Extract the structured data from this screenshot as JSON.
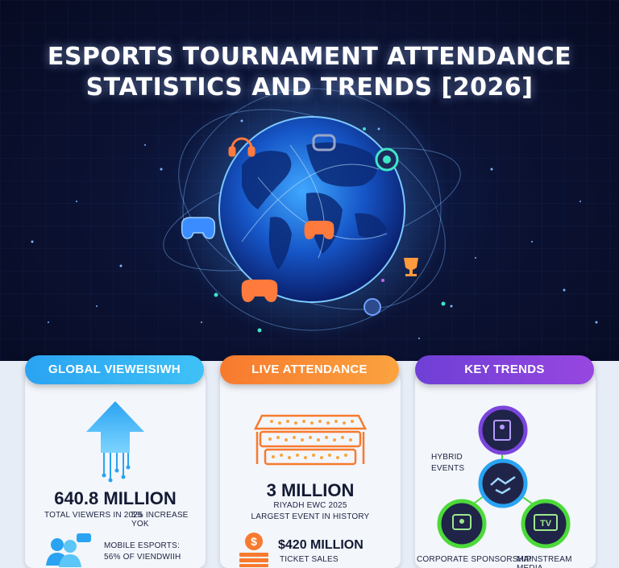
{
  "title": {
    "line1": "ESPORTS TOURNAMENT ATTENDANCE",
    "line2": "STATISTICS AND TRENDS [2026]"
  },
  "hero_icons": [
    "headphones-icon",
    "controller-icon",
    "vr-headset-icon",
    "trophy-icon",
    "camera-icon",
    "globe-icon"
  ],
  "colors": {
    "background": "#0a0f2a",
    "blue_accent": "#2aa3f2",
    "orange_accent": "#f77a2e",
    "purple_accent": "#7a44dd",
    "green_ring": "#4cd93a"
  },
  "cards": {
    "viewership": {
      "header": "GLOBAL VIEWEISIWH",
      "value": "640.8 MILLION",
      "caption_left": "TOTAL VIEWERS IN 2025",
      "caption_right": "5% INCREASE YOK",
      "mobile_line1": "MOBILE ESPORTS:",
      "mobile_line2": "56% OF VIENDWIIH"
    },
    "attendance": {
      "header": "LIVE ATTENDANCE",
      "value": "3 MILLION",
      "caption1": "RIYADH EWC 2025",
      "caption2": "LARGEST EVENT IN HISTORY",
      "ticket_value": "$420 MILLION",
      "ticket_caption": "TICKET SALES"
    },
    "trends": {
      "header": "KEY TRENDS",
      "hybrid_line1": "HYBRID",
      "hybrid_line2": "EVENTS",
      "corporate": "CORPORATE SPONSORSHIP",
      "media": "MAINSTREAM MEDIA",
      "media_icon_label": "TV"
    }
  }
}
